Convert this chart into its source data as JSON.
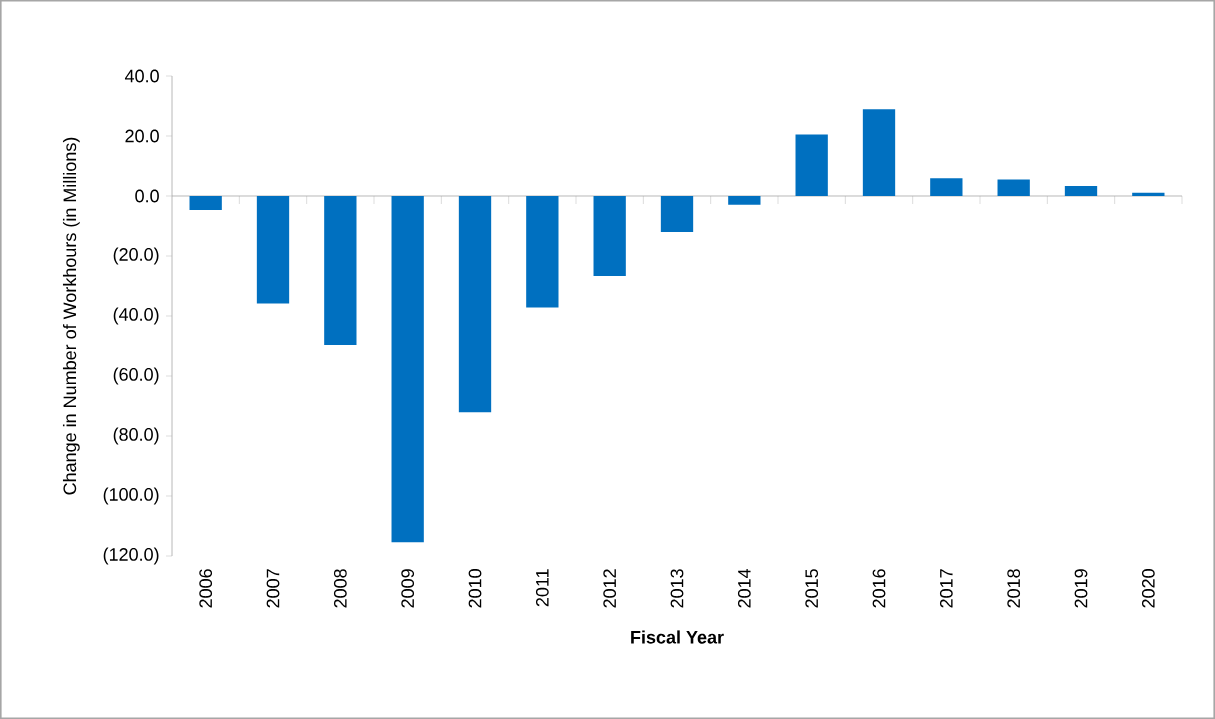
{
  "chart_data": {
    "type": "bar",
    "xlabel": "Fiscal Year",
    "ylabel": "Change in Number of Workhours (in Millions)",
    "categories": [
      "2006",
      "2007",
      "2008",
      "2009",
      "2010",
      "2011",
      "2012",
      "2013",
      "2014",
      "2015",
      "2016",
      "2017",
      "2018",
      "2019",
      "2020"
    ],
    "values": [
      -4.7,
      -35.8,
      -49.7,
      -115.4,
      -72.1,
      -37.2,
      -26.7,
      -12.0,
      -2.9,
      20.5,
      28.9,
      5.9,
      5.5,
      3.3,
      1.1
    ],
    "color": "#0070c0",
    "ylim": [
      -120,
      40
    ],
    "yticks": [
      {
        "value": 40,
        "label": "40.0"
      },
      {
        "value": 20,
        "label": "20.0"
      },
      {
        "value": 0,
        "label": "0.0"
      },
      {
        "value": -20,
        "label": "(20.0)"
      },
      {
        "value": -40,
        "label": "(40.0)"
      },
      {
        "value": -60,
        "label": "(60.0)"
      },
      {
        "value": -80,
        "label": "(80.0)"
      },
      {
        "value": -100,
        "label": "(100.0)"
      },
      {
        "value": -120,
        "label": "(120.0)"
      }
    ]
  }
}
